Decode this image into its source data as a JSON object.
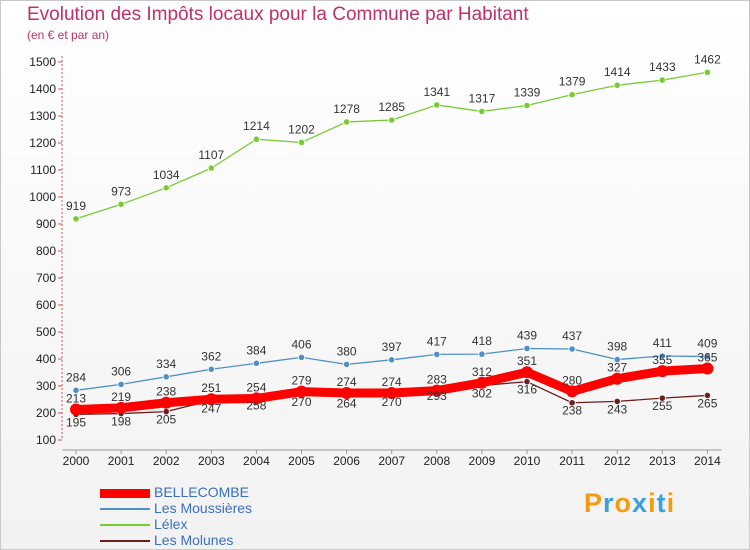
{
  "chart_data": {
    "type": "line",
    "title": "Evolution des Impôts locaux pour la Commune par Habitant",
    "subtitle": "(en € et par an)",
    "x": [
      "2000",
      "2001",
      "2002",
      "2003",
      "2004",
      "2005",
      "2006",
      "2007",
      "2008",
      "2009",
      "2010",
      "2011",
      "2012",
      "2013",
      "2014"
    ],
    "ylim": [
      100,
      1500
    ],
    "yticks": [
      100,
      200,
      300,
      400,
      500,
      600,
      700,
      800,
      900,
      1000,
      1100,
      1200,
      1300,
      1400,
      1500
    ],
    "grid": false,
    "legend_position": "bottom-left",
    "series": [
      {
        "name": "Lélex",
        "color": "#77cc33",
        "values": [
          919,
          973,
          1034,
          1107,
          1214,
          1202,
          1278,
          1285,
          1341,
          1317,
          1339,
          1379,
          1414,
          1433,
          1462
        ]
      },
      {
        "name": "Les Moussières",
        "color": "#4f8fc8",
        "values": [
          284,
          306,
          334,
          362,
          384,
          406,
          380,
          397,
          417,
          418,
          439,
          437,
          398,
          411,
          409
        ]
      },
      {
        "name": "Les Molunes",
        "color": "#6b1f1f",
        "values": [
          195,
          198,
          205,
          247,
          258,
          270,
          264,
          270,
          293,
          302,
          316,
          238,
          243,
          255,
          265
        ]
      },
      {
        "name": "BELLECOMBE",
        "color": "#ff0000",
        "values": [
          213,
          219,
          238,
          251,
          254,
          279,
          274,
          274,
          283,
          312,
          351,
          280,
          327,
          355,
          365
        ]
      }
    ],
    "legend_order": [
      "BELLECOMBE",
      "Les Moussières",
      "Lélex",
      "Les Molunes"
    ]
  },
  "logo": {
    "text": "Proxiti",
    "colors": [
      "#f39c12",
      "#3aa0e0",
      "#f39c12",
      "#3aa0e0",
      "#f39c12",
      "#3aa0e0",
      "#f39c12"
    ]
  }
}
